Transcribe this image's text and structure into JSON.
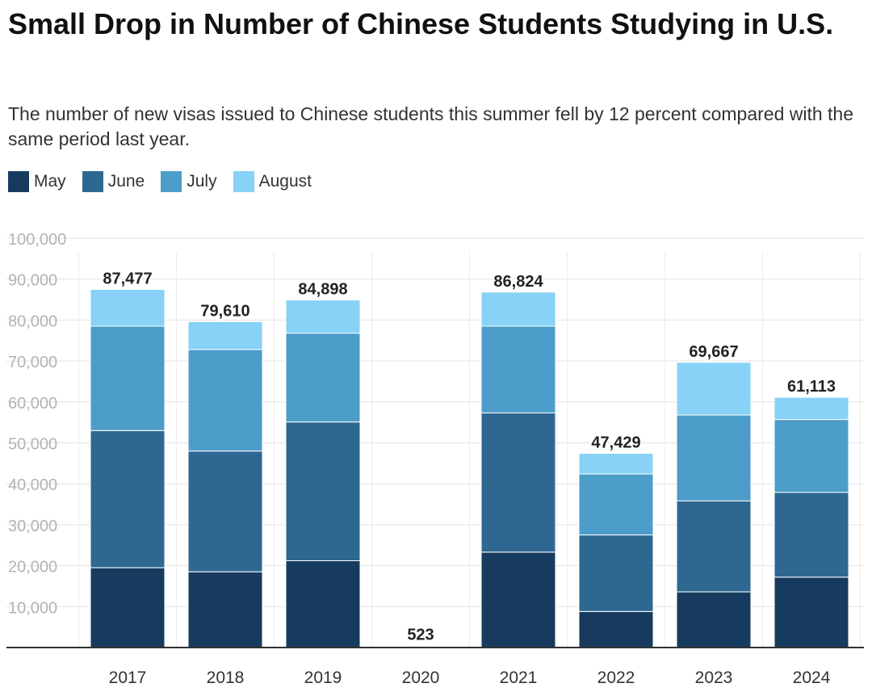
{
  "header": {
    "title": "Small Drop in Number of Chinese Students Studying in U.S.",
    "subtitle": "The number of new visas issued to Chinese students this summer fell by 12 percent compared with the same period last year."
  },
  "chart_data": {
    "type": "bar",
    "stacked": true,
    "title": "Small Drop in Number of Chinese Students Studying in U.S.",
    "subtitle": "The number of new visas issued to Chinese students this summer fell by 12 percent compared with the same period last year.",
    "xlabel": "",
    "ylabel": "",
    "ylim": [
      0,
      100000
    ],
    "yticks": [
      10000,
      20000,
      30000,
      40000,
      50000,
      60000,
      70000,
      80000,
      90000,
      100000
    ],
    "ytick_labels": [
      "10,000",
      "20,000",
      "30,000",
      "40,000",
      "50,000",
      "60,000",
      "70,000",
      "80,000",
      "90,000",
      "100,000"
    ],
    "grid": true,
    "legend_position": "top-left",
    "categories": [
      "2017",
      "2018",
      "2019",
      "2020",
      "2021",
      "2022",
      "2023",
      "2024"
    ],
    "series": [
      {
        "name": "May",
        "color": "#173b5f",
        "values": [
          19500,
          18500,
          21200,
          130,
          23300,
          8800,
          13600,
          17200
        ]
      },
      {
        "name": "June",
        "color": "#2e6891",
        "values": [
          33500,
          29500,
          33900,
          130,
          34000,
          18700,
          22200,
          20700
        ]
      },
      {
        "name": "July",
        "color": "#4c9dc9",
        "values": [
          25500,
          24800,
          21700,
          130,
          21200,
          14900,
          21000,
          17800
        ]
      },
      {
        "name": "August",
        "color": "#87d2f6",
        "values": [
          8977,
          6810,
          8098,
          133,
          8324,
          5029,
          12867,
          5413
        ]
      }
    ],
    "totals": [
      87477,
      79610,
      84898,
      523,
      86824,
      47429,
      69667,
      61113
    ],
    "total_labels": [
      "87,477",
      "79,610",
      "84,898",
      "523",
      "86,824",
      "47,429",
      "69,667",
      "61,113"
    ]
  }
}
